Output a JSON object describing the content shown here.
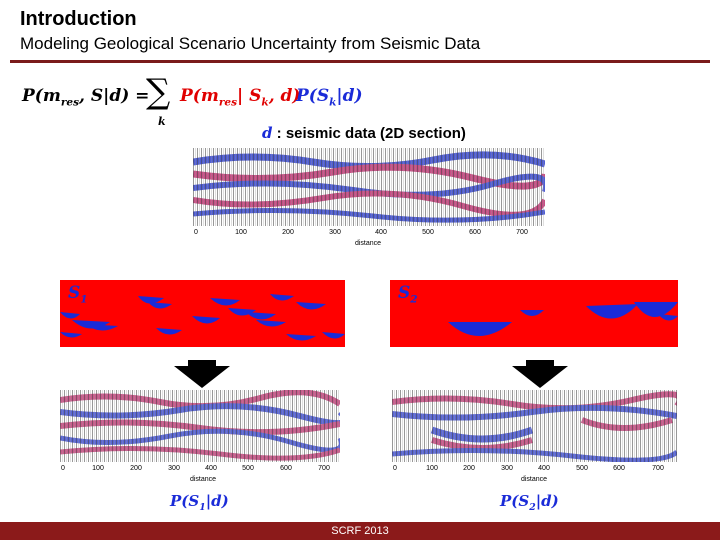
{
  "header": {
    "title": "Introduction",
    "subtitle": "Modeling Geological Scenario Uncertainty from Seismic Data"
  },
  "equation": {
    "lhs": "P(m",
    "lhs_sub": "res",
    "lhs_rest": ", S|d) =",
    "sum_index": "k",
    "term1_a": "P(m",
    "term1_sub": "res",
    "term1_b": "| S",
    "term1_sub2": "k",
    "term1_c": ", d)",
    "term2_a": "P(S",
    "term2_sub": "k",
    "term2_b": "|d)"
  },
  "seismic_label": {
    "variable": "d",
    "text": ": seismic data (2D section)"
  },
  "axis": {
    "ticks": [
      "0",
      "100",
      "200",
      "300",
      "400",
      "500",
      "600",
      "700"
    ],
    "xlabel": "distance"
  },
  "scenarios": [
    {
      "label_main": "S",
      "label_sub": "1",
      "prob_a": "P(S",
      "prob_sub": "1",
      "prob_b": "|d)"
    },
    {
      "label_main": "S",
      "label_sub": "2",
      "prob_a": "P(S",
      "prob_sub": "2",
      "prob_b": "|d)"
    }
  ],
  "footer": {
    "text": "SCRF 2013"
  },
  "colors": {
    "accent": "#8b1a1a",
    "scenario_background": "#ff0000",
    "scenario_body": "#1a2bd8",
    "red_text": "#e00000",
    "blue_text": "#1a2bd8"
  }
}
